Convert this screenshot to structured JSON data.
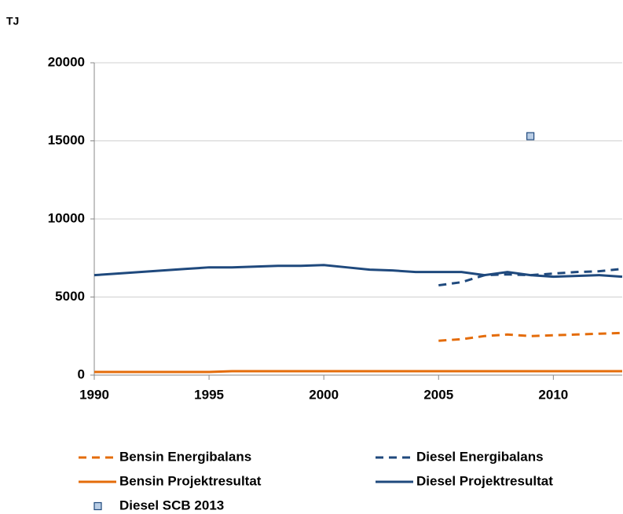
{
  "chart_data": {
    "type": "line",
    "y_unit_label": "TJ",
    "x": [
      1990,
      1991,
      1992,
      1993,
      1994,
      1995,
      1996,
      1997,
      1998,
      1999,
      2000,
      2001,
      2002,
      2003,
      2004,
      2005,
      2006,
      2007,
      2008,
      2009,
      2010,
      2011,
      2012,
      2013
    ],
    "xlim": [
      1990,
      2013
    ],
    "xticks": [
      1990,
      1995,
      2000,
      2005,
      2010
    ],
    "ylim": [
      0,
      20000
    ],
    "yticks": [
      0,
      5000,
      10000,
      15000,
      20000
    ],
    "grid": true,
    "series": [
      {
        "name": "Bensin Energibalans",
        "color": "#e46c0a",
        "style": "dashed",
        "values": [
          null,
          null,
          null,
          null,
          null,
          null,
          null,
          null,
          null,
          null,
          null,
          null,
          null,
          null,
          null,
          2200,
          2300,
          2500,
          2600,
          2500,
          2550,
          2600,
          2650,
          2700
        ]
      },
      {
        "name": "Diesel Energibalans",
        "color": "#1f497d",
        "style": "dashed",
        "values": [
          null,
          null,
          null,
          null,
          null,
          null,
          null,
          null,
          null,
          null,
          null,
          null,
          null,
          null,
          null,
          5750,
          5950,
          6400,
          6450,
          6400,
          6500,
          6600,
          6650,
          6800
        ]
      },
      {
        "name": "Bensin Projektresultat",
        "color": "#e46c0a",
        "style": "solid",
        "values": [
          200,
          200,
          200,
          200,
          200,
          200,
          250,
          250,
          250,
          250,
          250,
          250,
          250,
          250,
          250,
          250,
          250,
          250,
          250,
          250,
          250,
          250,
          250,
          250
        ]
      },
      {
        "name": "Diesel Projektresultat",
        "color": "#1f497d",
        "style": "solid",
        "values": [
          6400,
          6500,
          6600,
          6700,
          6800,
          6900,
          6900,
          6950,
          7000,
          7000,
          7050,
          6900,
          6750,
          6700,
          6600,
          6600,
          6600,
          6400,
          6600,
          6400,
          6300,
          6350,
          6400,
          6300
        ]
      },
      {
        "name": "Diesel SCB 2013",
        "color": "#b9cde5",
        "style": "marker",
        "values": [
          null,
          null,
          null,
          null,
          null,
          null,
          null,
          null,
          null,
          null,
          null,
          null,
          null,
          null,
          null,
          null,
          null,
          null,
          null,
          15300,
          null,
          null,
          null,
          null
        ]
      }
    ]
  }
}
